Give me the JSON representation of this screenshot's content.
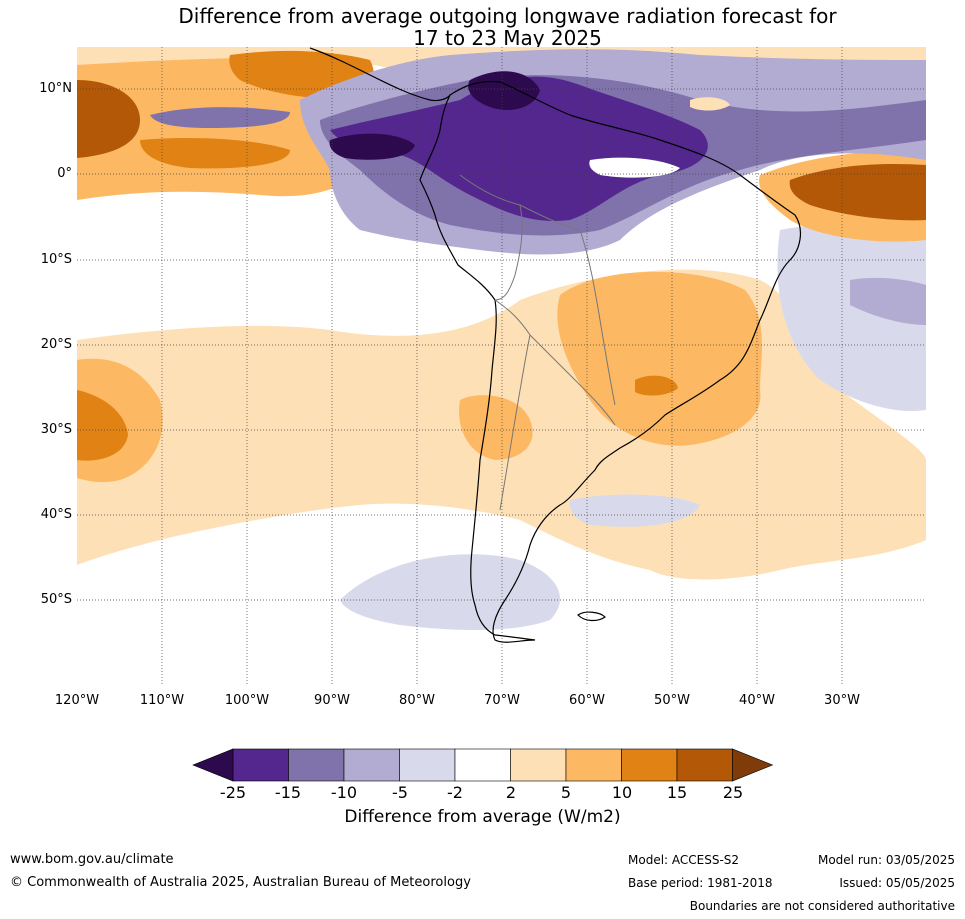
{
  "title": {
    "line1": "Difference from average outgoing longwave radiation forecast for",
    "line2": "17 to 23 May 2025"
  },
  "map": {
    "region": "South America and surrounding oceans",
    "lon_range": [
      -120,
      -20
    ],
    "lat_range": [
      -60,
      15
    ],
    "lat_labels": [
      "10°N",
      "0°",
      "10°S",
      "20°S",
      "30°S",
      "40°S",
      "50°S"
    ],
    "lat_values": [
      10,
      0,
      -10,
      -20,
      -30,
      -40,
      -50
    ],
    "lon_labels": [
      "120°W",
      "110°W",
      "100°W",
      "90°W",
      "80°W",
      "70°W",
      "60°W",
      "50°W",
      "40°W",
      "30°W"
    ],
    "lon_values": [
      -120,
      -110,
      -100,
      -90,
      -80,
      -70,
      -60,
      -50,
      -40,
      -30
    ],
    "gridlines": true,
    "colors": {
      "lt-25": "#2d0a4e",
      "-25 to -15": "#54278f",
      "-15 to -10": "#8073ac",
      "-10 to -5": "#b2abd2",
      "-5 to -2": "#d8daeb",
      "-2 to 2": "#ffffff",
      "2 to 5": "#fee0b6",
      "5 to 10": "#fdb863",
      "10 to 15": "#e08214",
      "15 to 25": "#b35806",
      "gt25": "#7f3b08"
    }
  },
  "colorbar": {
    "ticks": [
      "-25",
      "-15",
      "-10",
      "-5",
      "-2",
      "2",
      "5",
      "10",
      "15",
      "25"
    ],
    "colors": [
      "#54278f",
      "#8073ac",
      "#b2abd2",
      "#d8daeb",
      "#ffffff",
      "#fee0b6",
      "#fdb863",
      "#e08214",
      "#b35806"
    ],
    "low_extend_color": "#2d0a4e",
    "high_extend_color": "#7f3b08",
    "label": "Difference from average (W/m2)"
  },
  "footer": {
    "url": "www.bom.gov.au/climate",
    "copyright": "© Commonwealth of Australia 2025, Australian Bureau of Meteorology",
    "model": "Model: ACCESS-S2",
    "base_period": "Base period: 1981-2018",
    "model_run": "Model run: 03/05/2025",
    "issued": "Issued: 05/05/2025",
    "boundaries": "Boundaries are not considered authoritative"
  }
}
